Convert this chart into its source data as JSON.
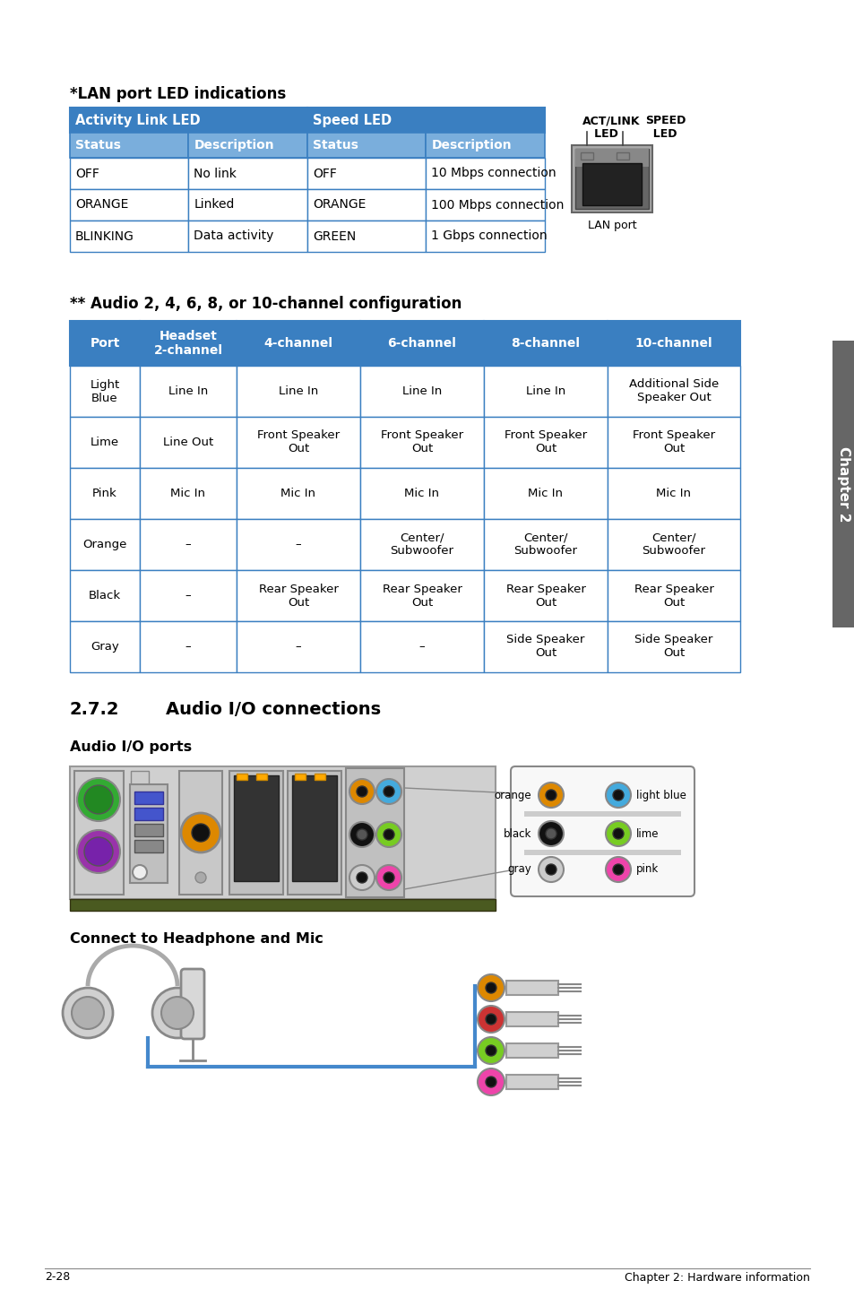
{
  "bg_color": "#ffffff",
  "lan_title": "*LAN port LED indications",
  "lan_table_header1": "Activity Link LED",
  "lan_table_header2": "Speed LED",
  "lan_col_headers": [
    "Status",
    "Description",
    "Status",
    "Description"
  ],
  "lan_rows": [
    [
      "OFF",
      "No link",
      "OFF",
      "10 Mbps connection"
    ],
    [
      "ORANGE",
      "Linked",
      "ORANGE",
      "100 Mbps connection"
    ],
    [
      "BLINKING",
      "Data activity",
      "GREEN",
      "1 Gbps connection"
    ]
  ],
  "lan_header_bg": "#3a7fc1",
  "lan_subheader_bg": "#7aaedc",
  "lan_border": "#3a7fc1",
  "lan_port_label": "LAN port",
  "audio_title": "** Audio 2, 4, 6, 8, or 10-channel configuration",
  "audio_col_headers": [
    "Port",
    "Headset\n2-channel",
    "4-channel",
    "6-channel",
    "8-channel",
    "10-channel"
  ],
  "audio_rows": [
    [
      "Light\nBlue",
      "Line In",
      "Line In",
      "Line In",
      "Line In",
      "Additional Side\nSpeaker Out"
    ],
    [
      "Lime",
      "Line Out",
      "Front Speaker\nOut",
      "Front Speaker\nOut",
      "Front Speaker\nOut",
      "Front Speaker\nOut"
    ],
    [
      "Pink",
      "Mic In",
      "Mic In",
      "Mic In",
      "Mic In",
      "Mic In"
    ],
    [
      "Orange",
      "–",
      "–",
      "Center/\nSubwoofer",
      "Center/\nSubwoofer",
      "Center/\nSubwoofer"
    ],
    [
      "Black",
      "–",
      "Rear Speaker\nOut",
      "Rear Speaker\nOut",
      "Rear Speaker\nOut",
      "Rear Speaker\nOut"
    ],
    [
      "Gray",
      "–",
      "–",
      "–",
      "Side Speaker\nOut",
      "Side Speaker\nOut"
    ]
  ],
  "audio_header_bg": "#3a7fc1",
  "audio_border": "#3a7fc1",
  "section_272": "2.7.2",
  "section_272_title": "Audio I/O connections",
  "audio_io_ports_title": "Audio I/O ports",
  "connect_headphone_title": "Connect to Headphone and Mic",
  "footer_left": "2-28",
  "footer_right": "Chapter 2: Hardware information"
}
